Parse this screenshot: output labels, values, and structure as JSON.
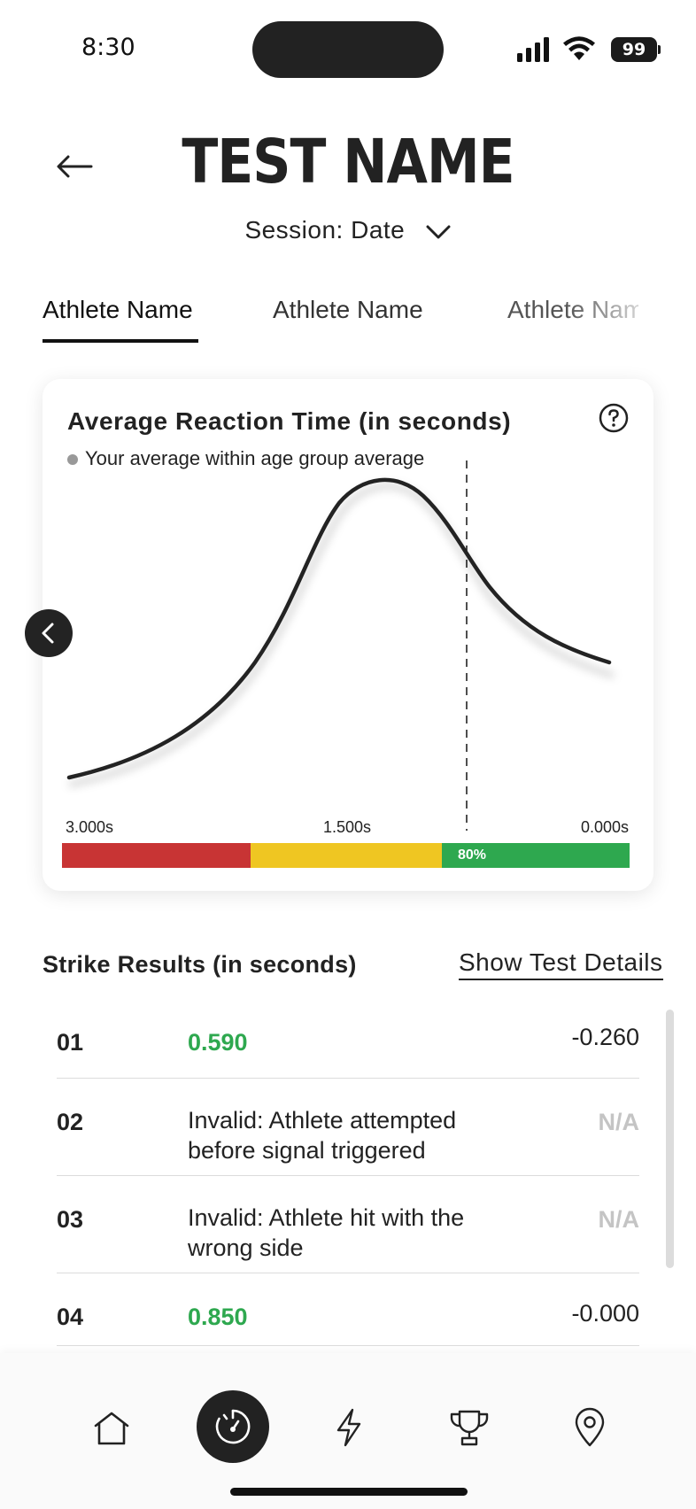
{
  "status_bar": {
    "time": "8:30",
    "battery": "99"
  },
  "header": {
    "title": "TEST NAME",
    "session_label": "Session: Date"
  },
  "tabs": [
    {
      "label": "Athlete Name",
      "active": true
    },
    {
      "label": "Athlete Name",
      "active": false
    },
    {
      "label": "Athlete Name",
      "active": false
    }
  ],
  "chart_card": {
    "title": "Average Reaction Time (in seconds)",
    "legend": "Your average within age group average",
    "chart_data": {
      "type": "line",
      "title": "Average Reaction Time (in seconds)",
      "x_ticks": [
        "3.000s",
        "1.500s",
        "0.000s"
      ],
      "xlim": [
        3.0,
        0.0
      ],
      "curve_shape": "bell distribution, peak near center, skewed toward faster times",
      "marker_line": "dashed vertical line",
      "scale_segments": [
        {
          "color": "#c83434",
          "fraction": 0.33
        },
        {
          "color": "#efc622",
          "fraction": 0.34
        },
        {
          "color": "#2ea84f",
          "fraction": 0.33,
          "label": "80%"
        }
      ]
    }
  },
  "results": {
    "title": "Strike Results (in seconds)",
    "details_link": "Show Test Details",
    "rows": [
      {
        "num": "01",
        "value": "0.590",
        "valid": true,
        "delta": "-0.260"
      },
      {
        "num": "02",
        "value": "Invalid: Athlete attempted before signal triggered",
        "valid": false,
        "delta": "N/A"
      },
      {
        "num": "03",
        "value": "Invalid: Athlete hit with the wrong side",
        "valid": false,
        "delta": "N/A"
      },
      {
        "num": "04",
        "value": "0.850",
        "valid": true,
        "delta": "-0.000"
      }
    ]
  },
  "bottom_nav": {
    "items": [
      "home-icon",
      "stopwatch-icon",
      "lightning-icon",
      "trophy-icon",
      "location-pin-icon"
    ],
    "active": "stopwatch-icon"
  },
  "colors": {
    "accent_green": "#2ea84f",
    "red": "#c83434",
    "yellow": "#efc622",
    "dark": "#222222"
  }
}
